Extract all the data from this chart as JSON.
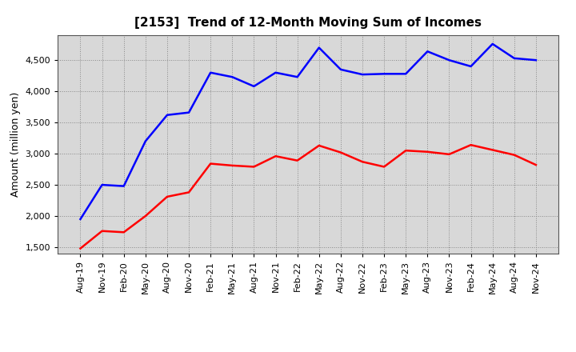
{
  "title": "[2153]  Trend of 12-Month Moving Sum of Incomes",
  "ylabel": "Amount (million yen)",
  "x_labels": [
    "Aug-19",
    "Nov-19",
    "Feb-20",
    "May-20",
    "Aug-20",
    "Nov-20",
    "Feb-21",
    "May-21",
    "Aug-21",
    "Nov-21",
    "Feb-22",
    "May-22",
    "Aug-22",
    "Nov-22",
    "Feb-23",
    "May-23",
    "Aug-23",
    "Nov-23",
    "Feb-24",
    "May-24",
    "Aug-24",
    "Nov-24"
  ],
  "ordinary_income": [
    1950,
    2500,
    2480,
    3200,
    3620,
    3660,
    4300,
    4230,
    4080,
    4300,
    4230,
    4700,
    4350,
    4270,
    4280,
    4280,
    4640,
    4500,
    4400,
    4760,
    4530,
    4500
  ],
  "net_income": [
    1480,
    1760,
    1740,
    2000,
    2310,
    2380,
    2840,
    2810,
    2790,
    2960,
    2890,
    3130,
    3020,
    2870,
    2790,
    3050,
    3030,
    2990,
    3140,
    3060,
    2980,
    2820
  ],
  "ordinary_color": "#0000FF",
  "net_color": "#FF0000",
  "ylim": [
    1400,
    4900
  ],
  "yticks": [
    1500,
    2000,
    2500,
    3000,
    3500,
    4000,
    4500
  ],
  "background_color": "#FFFFFF",
  "plot_bg_color": "#D8D8D8",
  "grid_color": "#AAAAAA",
  "title_fontsize": 11,
  "label_fontsize": 9,
  "tick_fontsize": 8
}
